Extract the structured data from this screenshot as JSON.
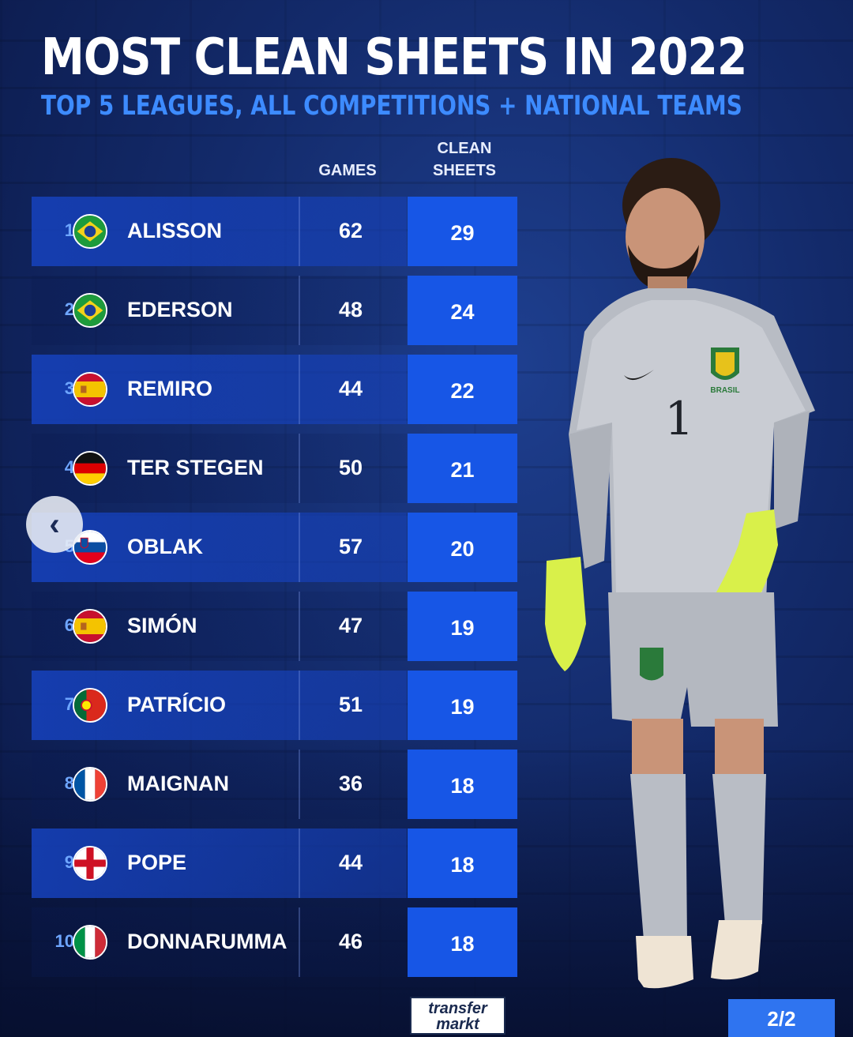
{
  "header": {
    "title": "MOST CLEAN SHEETS IN 2022",
    "subtitle": "TOP 5 LEAGUES, ALL COMPETITIONS + NATIONAL TEAMS"
  },
  "columns": {
    "games": "GAMES",
    "clean_sheets_line1": "CLEAN",
    "clean_sheets_line2": "SHEETS"
  },
  "rows": [
    {
      "rank": "1",
      "flag": "brazil-flag-icon",
      "name": "ALISSON",
      "games": "62",
      "clean_sheets": "29"
    },
    {
      "rank": "2",
      "flag": "brazil-flag-icon",
      "name": "EDERSON",
      "games": "48",
      "clean_sheets": "24"
    },
    {
      "rank": "3",
      "flag": "spain-flag-icon",
      "name": "REMIRO",
      "games": "44",
      "clean_sheets": "22"
    },
    {
      "rank": "4",
      "flag": "germany-flag-icon",
      "name": "TER STEGEN",
      "games": "50",
      "clean_sheets": "21"
    },
    {
      "rank": "5",
      "flag": "slovenia-flag-icon",
      "name": "OBLAK",
      "games": "57",
      "clean_sheets": "20"
    },
    {
      "rank": "6",
      "flag": "spain-flag-icon",
      "name": "SIMÓN",
      "games": "47",
      "clean_sheets": "19"
    },
    {
      "rank": "7",
      "flag": "portugal-flag-icon",
      "name": "PATRÍCIO",
      "games": "51",
      "clean_sheets": "19"
    },
    {
      "rank": "8",
      "flag": "france-flag-icon",
      "name": "MAIGNAN",
      "games": "36",
      "clean_sheets": "18"
    },
    {
      "rank": "9",
      "flag": "england-flag-icon",
      "name": "POPE",
      "games": "44",
      "clean_sheets": "18"
    },
    {
      "rank": "10",
      "flag": "italy-flag-icon",
      "name": "DONNARUMMA",
      "games": "46",
      "clean_sheets": "18"
    }
  ],
  "player_image": {
    "jersey_number": "1",
    "crest_text": "BRASIL"
  },
  "footer": {
    "logo_line1": "transfer",
    "logo_line2": "markt",
    "page_indicator": "2/2"
  },
  "colors": {
    "accent": "#1756e6",
    "subtitle": "#3d8bff",
    "background": "#132a6a"
  }
}
